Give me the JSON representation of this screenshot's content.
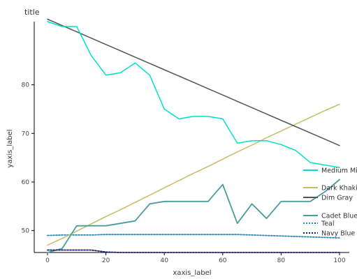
{
  "chart_data": {
    "type": "line",
    "title": "title",
    "xlabel": "xaxis_label",
    "ylabel": "yaxis_label",
    "xlim": [
      0,
      100
    ],
    "ylim": [
      45.5,
      93
    ],
    "x_ticks": [
      0,
      20,
      40,
      60,
      80,
      100
    ],
    "y_ticks": [
      50,
      60,
      70,
      80
    ],
    "grid": false,
    "legend_position": "left",
    "x": [
      0,
      5,
      10,
      15,
      20,
      25,
      30,
      35,
      40,
      45,
      50,
      55,
      60,
      65,
      70,
      75,
      80,
      85,
      90,
      95,
      100
    ],
    "series": [
      {
        "name": "Teal",
        "color": "#2e86b0",
        "dash": "2,2",
        "width": 1.8,
        "values": [
          49.0,
          49.1,
          49.1,
          49.1,
          49.2,
          49.2,
          49.2,
          49.2,
          49.2,
          49.2,
          49.2,
          49.2,
          49.2,
          49.2,
          49.1,
          49.0,
          48.9,
          48.8,
          48.7,
          48.6,
          48.5
        ]
      },
      {
        "name": "Dark Khaki",
        "color": "#c4bc66",
        "width": 1.5,
        "values": [
          47.0,
          48.4,
          49.9,
          51.4,
          52.9,
          54.3,
          55.8,
          57.3,
          58.8,
          60.3,
          61.8,
          63.2,
          64.7,
          66.2,
          67.6,
          69.1,
          70.5,
          71.9,
          73.3,
          74.7,
          76.0
        ]
      },
      {
        "name": "Dim Gray",
        "color": "#555555",
        "width": 1.5,
        "values": [
          93.5,
          92.2,
          90.9,
          89.6,
          88.3,
          87.0,
          85.7,
          84.4,
          83.1,
          81.8,
          80.5,
          79.2,
          77.9,
          76.6,
          75.3,
          74.0,
          72.7,
          71.4,
          70.1,
          68.8,
          67.5
        ]
      },
      {
        "name": "Medium Mint",
        "color": "#00e0c8",
        "width": 1.5,
        "values": [
          93.0,
          92.0,
          92.0,
          86.0,
          82.0,
          82.5,
          84.5,
          82.0,
          75.0,
          73.0,
          73.5,
          73.5,
          73.0,
          68.0,
          68.5,
          68.5,
          67.7,
          66.5,
          64.0,
          63.5,
          63.0
        ]
      },
      {
        "name": "Cadet Blue",
        "color": "#4a9c9c",
        "width": 1.8,
        "values": [
          45.5,
          46.3,
          51.0,
          51.0,
          51.0,
          51.5,
          52.0,
          55.5,
          56.0,
          56.0,
          56.0,
          56.0,
          59.5,
          51.5,
          55.5,
          52.5,
          56.0,
          56.0,
          56.0,
          58.0,
          60.5
        ]
      },
      {
        "name": "Navy Blue",
        "color": "#1a1a6e",
        "dash": "2,2",
        "width": 1.8,
        "values": [
          46.0,
          46.0,
          46.0,
          46.0,
          45.6,
          45.5,
          45.5,
          45.5,
          45.5,
          45.5,
          45.5,
          45.5,
          45.5,
          45.5,
          45.5,
          45.5,
          45.5,
          45.5,
          45.5,
          45.5,
          45.5
        ]
      }
    ],
    "legend": [
      "Teal",
      "Navy Blue",
      "Cadet Blue",
      "Medium Mint",
      "Dim Gray",
      "Dark Khaki"
    ]
  }
}
